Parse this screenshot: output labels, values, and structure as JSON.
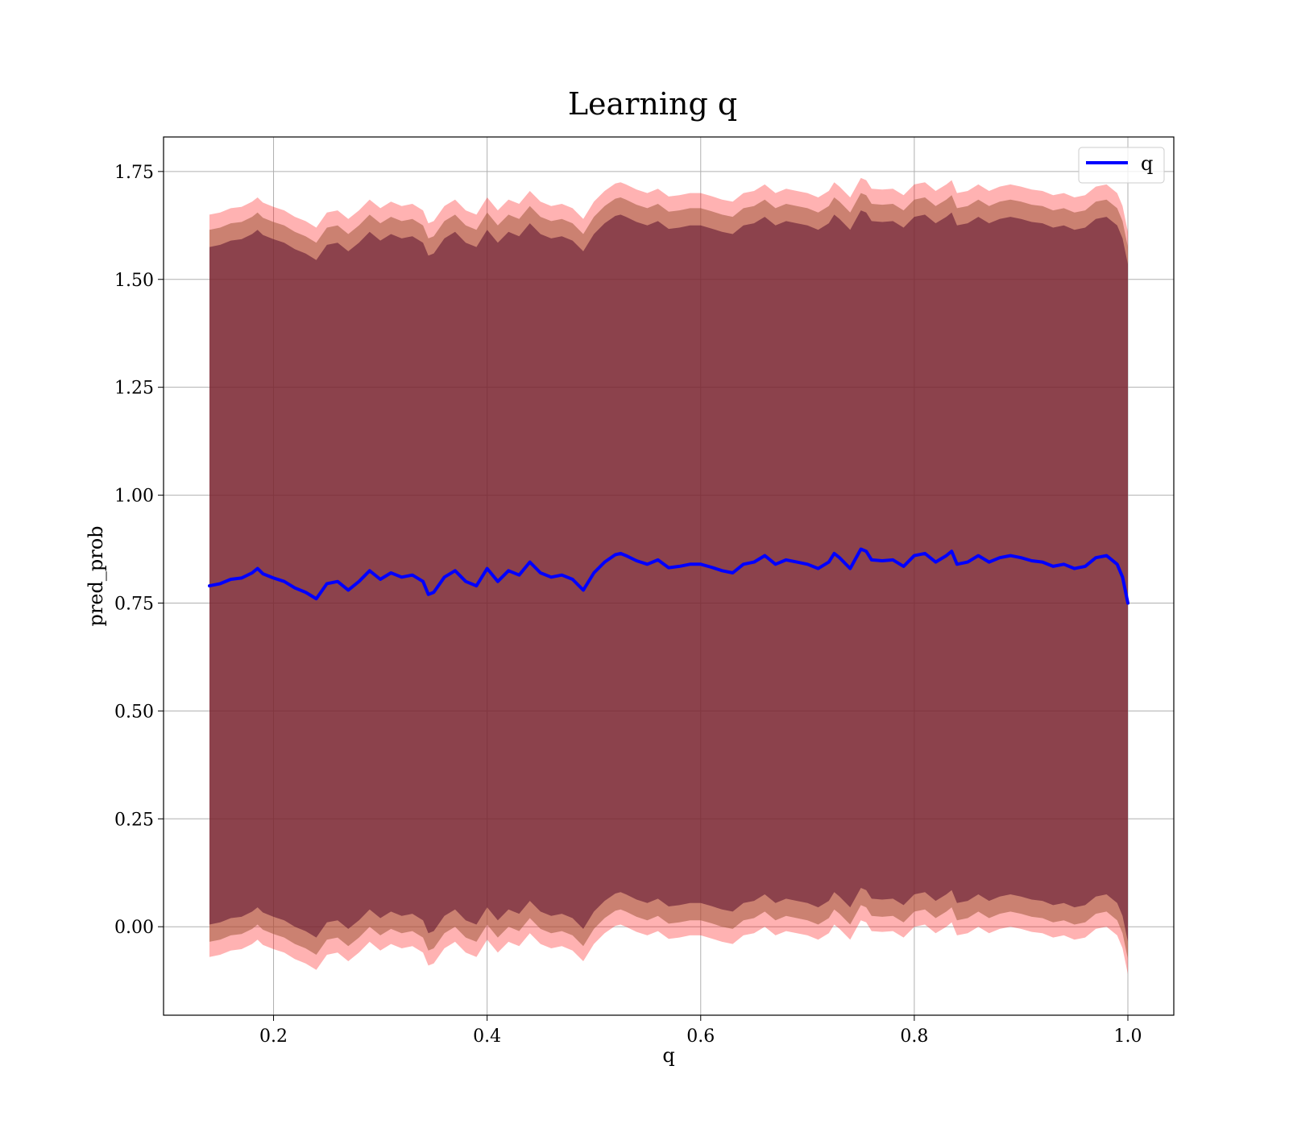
{
  "chart_data": {
    "type": "line",
    "title": "Learning q",
    "xlabel": "q",
    "ylabel": "pred_prob",
    "xlim": [
      0.097,
      1.043
    ],
    "ylim": [
      -0.205,
      1.83
    ],
    "xticks": [
      0.2,
      0.4,
      0.6,
      0.8,
      1.0
    ],
    "xtick_labels": [
      "0.2",
      "0.4",
      "0.6",
      "0.8",
      "1.0"
    ],
    "yticks": [
      0.0,
      0.25,
      0.5,
      0.75,
      1.0,
      1.25,
      1.5,
      1.75
    ],
    "ytick_labels": [
      "0.00",
      "0.25",
      "0.50",
      "0.75",
      "1.00",
      "1.25",
      "1.50",
      "1.75"
    ],
    "grid": true,
    "legend": {
      "position": "upper-right",
      "entries": [
        {
          "label": "q",
          "color": "#0000ff"
        }
      ]
    },
    "colors": {
      "line": "#0000ff",
      "band_outer": "#ff0000",
      "band_middle": "#a05a3c",
      "band_inner": "#5a0f2d"
    },
    "bands": [
      {
        "name": "outer",
        "half_width": 0.86,
        "color": "#ff0000",
        "opacity": 0.3
      },
      {
        "name": "middle",
        "half_width": 0.825,
        "color": "#a05a3c",
        "opacity": 0.55
      },
      {
        "name": "inner",
        "half_width": 0.785,
        "color": "#5a0f2d",
        "opacity": 0.55
      }
    ],
    "series": [
      {
        "name": "q",
        "color": "#0000ff",
        "x": [
          0.14,
          0.15,
          0.16,
          0.17,
          0.18,
          0.185,
          0.19,
          0.2,
          0.21,
          0.22,
          0.23,
          0.24,
          0.25,
          0.26,
          0.27,
          0.28,
          0.29,
          0.3,
          0.31,
          0.32,
          0.33,
          0.34,
          0.345,
          0.35,
          0.36,
          0.37,
          0.38,
          0.39,
          0.4,
          0.41,
          0.42,
          0.43,
          0.44,
          0.45,
          0.46,
          0.47,
          0.48,
          0.49,
          0.5,
          0.51,
          0.52,
          0.525,
          0.53,
          0.54,
          0.55,
          0.56,
          0.57,
          0.58,
          0.59,
          0.6,
          0.61,
          0.62,
          0.63,
          0.64,
          0.65,
          0.66,
          0.67,
          0.68,
          0.69,
          0.7,
          0.71,
          0.72,
          0.725,
          0.73,
          0.74,
          0.75,
          0.755,
          0.76,
          0.77,
          0.78,
          0.79,
          0.8,
          0.81,
          0.82,
          0.83,
          0.835,
          0.84,
          0.85,
          0.86,
          0.87,
          0.88,
          0.89,
          0.9,
          0.91,
          0.92,
          0.93,
          0.94,
          0.95,
          0.96,
          0.97,
          0.98,
          0.99,
          0.995,
          1.0
        ],
        "y": [
          0.79,
          0.795,
          0.805,
          0.808,
          0.82,
          0.83,
          0.818,
          0.808,
          0.8,
          0.785,
          0.775,
          0.76,
          0.795,
          0.8,
          0.78,
          0.8,
          0.825,
          0.805,
          0.82,
          0.81,
          0.815,
          0.8,
          0.77,
          0.775,
          0.81,
          0.825,
          0.8,
          0.79,
          0.83,
          0.8,
          0.825,
          0.815,
          0.845,
          0.82,
          0.81,
          0.815,
          0.805,
          0.78,
          0.82,
          0.845,
          0.862,
          0.865,
          0.86,
          0.848,
          0.84,
          0.85,
          0.832,
          0.835,
          0.84,
          0.84,
          0.833,
          0.825,
          0.82,
          0.84,
          0.845,
          0.86,
          0.84,
          0.85,
          0.845,
          0.84,
          0.83,
          0.845,
          0.865,
          0.855,
          0.83,
          0.875,
          0.87,
          0.85,
          0.848,
          0.85,
          0.835,
          0.86,
          0.865,
          0.845,
          0.86,
          0.87,
          0.84,
          0.845,
          0.86,
          0.845,
          0.855,
          0.86,
          0.855,
          0.848,
          0.845,
          0.835,
          0.84,
          0.83,
          0.835,
          0.855,
          0.86,
          0.84,
          0.81,
          0.75
        ]
      }
    ]
  }
}
